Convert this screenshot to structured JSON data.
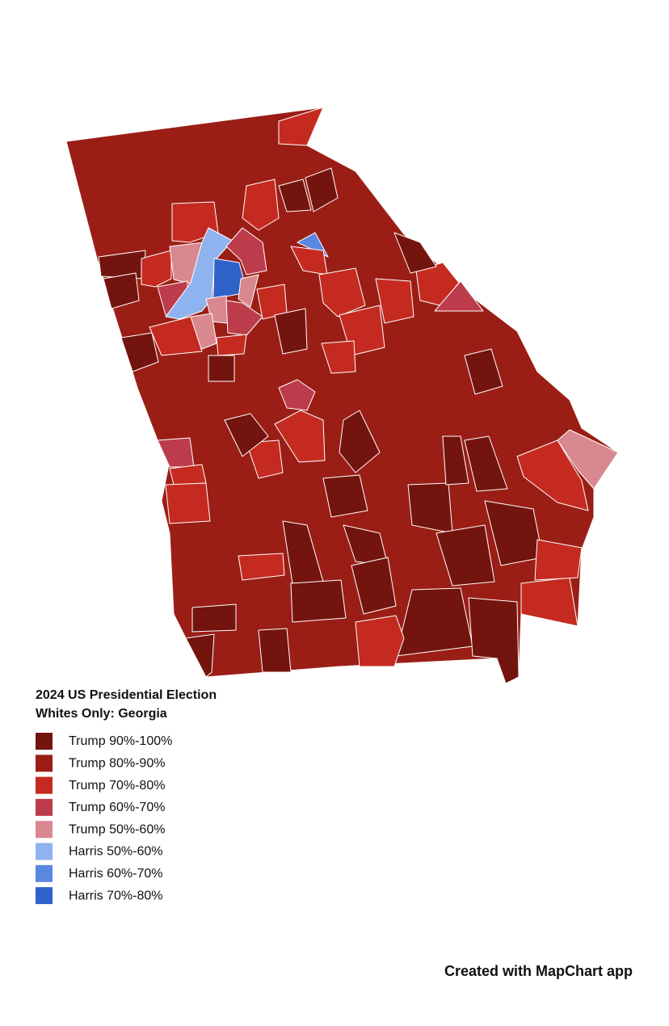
{
  "title": [
    "2024 US Presidential Election",
    "Whites Only: Georgia"
  ],
  "legend": [
    {
      "label": "Trump 90%-100%",
      "color": "#74140f"
    },
    {
      "label": "Trump 80%-90%",
      "color": "#9a1e16"
    },
    {
      "label": "Trump 70%-80%",
      "color": "#c52a20"
    },
    {
      "label": "Trump 60%-70%",
      "color": "#bd3c4c"
    },
    {
      "label": "Trump 50%-60%",
      "color": "#d98890"
    },
    {
      "label": "Harris 50%-60%",
      "color": "#8fb3ee"
    },
    {
      "label": "Harris 60%-70%",
      "color": "#5a87e0"
    },
    {
      "label": "Harris 70%-80%",
      "color": "#2f62c9"
    }
  ],
  "credit": "Created with MapChart app"
}
